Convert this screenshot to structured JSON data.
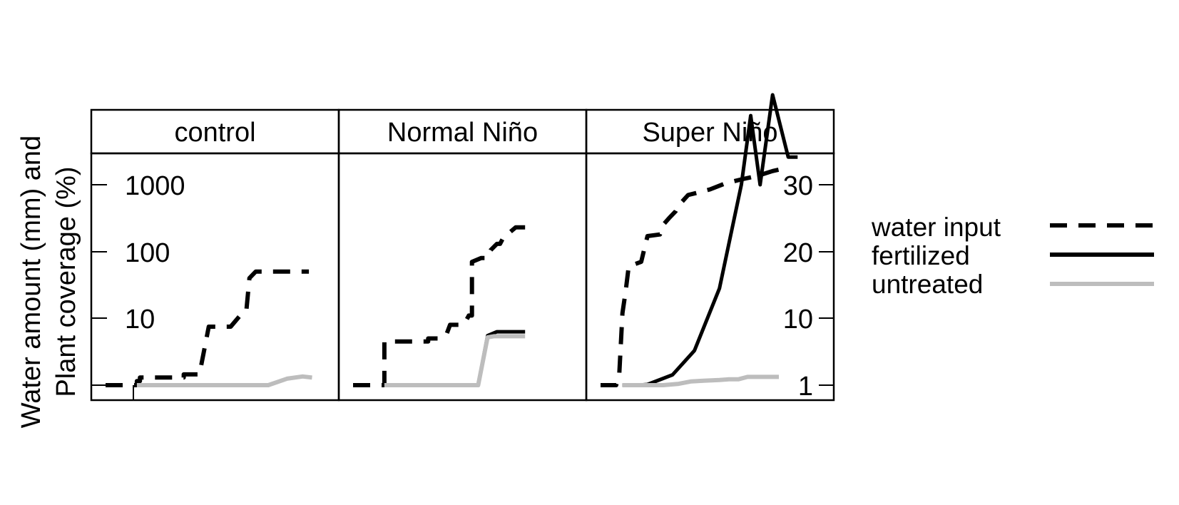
{
  "chart_data": {
    "type": "line",
    "ylabel": [
      "Water amount (mm) and",
      "Plant coverage (%)"
    ],
    "panels": [
      {
        "title": "control",
        "series": {
          "water input": [
            [
              0,
              1
            ],
            [
              1,
              1
            ],
            [
              1,
              1.15
            ],
            [
              1.1,
              1.15
            ],
            [
              1.1,
              1.3
            ],
            [
              2.5,
              1.3
            ],
            [
              2.5,
              1.45
            ],
            [
              3,
              1.45
            ],
            [
              3.3,
              7.5
            ],
            [
              4,
              7.5
            ],
            [
              4.3,
              11
            ],
            [
              4.5,
              13
            ],
            [
              4.6,
              40
            ],
            [
              4.8,
              50
            ],
            [
              6,
              50
            ],
            [
              6.5,
              50
            ]
          ],
          "fertilized": [
            [
              1,
              1
            ],
            [
              5.2,
              1
            ]
          ],
          "untreated": [
            [
              1,
              1
            ],
            [
              5.2,
              1
            ],
            [
              5.8,
              1.25
            ],
            [
              6.3,
              1.35
            ],
            [
              6.6,
              1.3
            ]
          ]
        }
      },
      {
        "title": "Normal Niño",
        "series": {
          "water input": [
            [
              0,
              1
            ],
            [
              1,
              1
            ],
            [
              1,
              4.5
            ],
            [
              2.4,
              4.5
            ],
            [
              2.4,
              5
            ],
            [
              2.8,
              5
            ],
            [
              3,
              6
            ],
            [
              3.1,
              8
            ],
            [
              3.5,
              8
            ],
            [
              3.6,
              9
            ],
            [
              3.7,
              11
            ],
            [
              3.8,
              11
            ],
            [
              3.8,
              70
            ],
            [
              4.1,
              80
            ],
            [
              4.3,
              80
            ],
            [
              4.4,
              105
            ],
            [
              4.6,
              130
            ],
            [
              4.7,
              130
            ],
            [
              4.8,
              160
            ],
            [
              5.2,
              230
            ],
            [
              5.5,
              230
            ]
          ],
          "fertilized": [
            [
              1,
              1
            ],
            [
              4,
              1
            ],
            [
              4.3,
              5.5
            ],
            [
              4.6,
              6.3
            ],
            [
              5.5,
              6.3
            ]
          ],
          "untreated": [
            [
              1,
              1
            ],
            [
              4,
              1
            ],
            [
              4.3,
              5.2
            ],
            [
              4.5,
              5.4
            ],
            [
              5.5,
              5.4
            ]
          ]
        }
      },
      {
        "title": "Super Niño",
        "series": {
          "water input": [
            [
              0,
              1
            ],
            [
              0.5,
              1
            ],
            [
              0.6,
              1.5
            ],
            [
              0.7,
              12
            ],
            [
              0.8,
              25
            ],
            [
              0.9,
              60
            ],
            [
              1.3,
              70
            ],
            [
              1.4,
              110
            ],
            [
              1.5,
              170
            ],
            [
              1.9,
              180
            ],
            [
              2,
              250
            ],
            [
              2.2,
              320
            ],
            [
              2.4,
              400
            ],
            [
              2.5,
              490
            ],
            [
              2.8,
              700
            ],
            [
              3.1,
              760
            ],
            [
              3.5,
              850
            ],
            [
              4,
              1050
            ],
            [
              4.5,
              1200
            ],
            [
              5,
              1350
            ],
            [
              5.5,
              1600
            ],
            [
              6,
              1800
            ]
          ],
          "fertilized": [
            [
              0.7,
              1
            ],
            [
              1.2,
              1
            ],
            [
              1.5,
              1.1
            ],
            [
              2.3,
              2.5
            ],
            [
              3,
              6
            ],
            [
              3.8,
              15
            ],
            [
              4.5,
              30
            ],
            [
              4.8,
              40
            ],
            [
              5.1,
              30
            ],
            [
              5.5,
              43
            ],
            [
              6,
              34
            ],
            [
              6.3,
              34
            ]
          ],
          "untreated": [
            [
              0.7,
              1
            ],
            [
              2,
              1
            ],
            [
              2.5,
              1.2
            ],
            [
              2.9,
              1.55
            ],
            [
              3.3,
              1.65
            ],
            [
              3.8,
              1.75
            ],
            [
              4.1,
              1.85
            ],
            [
              4.4,
              1.85
            ],
            [
              4.7,
              2.2
            ],
            [
              5.7,
              2.2
            ]
          ]
        }
      }
    ],
    "left_axis": {
      "scale": "log",
      "ticks": [
        1,
        10,
        100,
        1000
      ],
      "tick_labels": [
        "",
        "10",
        "100",
        "1000"
      ]
    },
    "right_axis": {
      "scale": "linear",
      "ticks": [
        1,
        10,
        20,
        30
      ],
      "tick_labels": [
        "1",
        "10",
        "20",
        "30"
      ]
    },
    "legend": {
      "placement": "right",
      "entries": [
        {
          "label": "water input",
          "color": "#000000",
          "style": "dashed"
        },
        {
          "label": "fertilized",
          "color": "#000000",
          "style": "solid"
        },
        {
          "label": "untreated",
          "color": "#bdbdbd",
          "style": "solid"
        }
      ]
    },
    "colors": {
      "water input": "#000000",
      "fertilized": "#000000",
      "untreated": "#bdbdbd",
      "strip_background": "#ffffff"
    }
  }
}
